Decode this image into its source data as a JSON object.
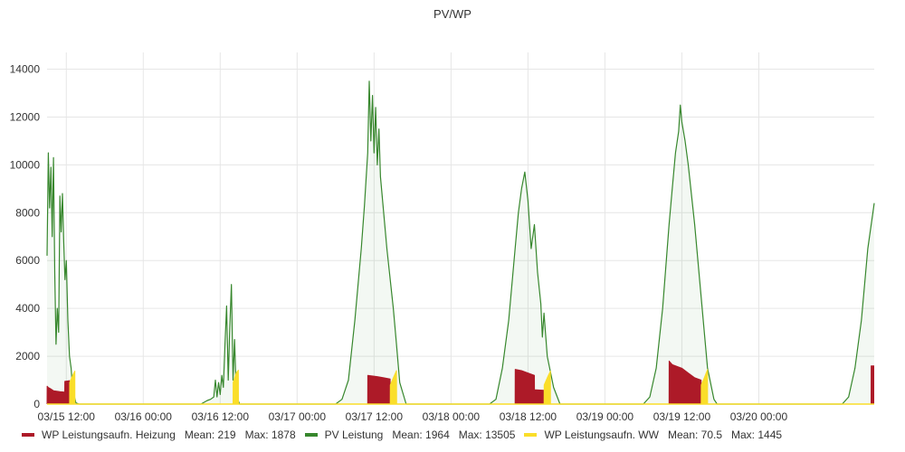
{
  "chart_data": {
    "type": "area",
    "title": "PV/WP",
    "xlabel": "",
    "ylabel": "",
    "ylim": [
      0,
      14700
    ],
    "xlim": [
      "2024-03-15T09:00",
      "2024-03-20T18:00"
    ],
    "grid": true,
    "legend_position": "bottom-left",
    "yticks": [
      0,
      2000,
      4000,
      6000,
      8000,
      10000,
      12000,
      14000
    ],
    "ytick_labels": [
      "0",
      "2000",
      "4000",
      "6000",
      "8000",
      "10000",
      "12000",
      "14000"
    ],
    "xticks": [
      "2024-03-15T12:00",
      "2024-03-16T00:00",
      "2024-03-16T12:00",
      "2024-03-17T00:00",
      "2024-03-17T12:00",
      "2024-03-18T00:00",
      "2024-03-18T12:00",
      "2024-03-19T00:00",
      "2024-03-19T12:00",
      "2024-03-20T00:00"
    ],
    "xtick_labels": [
      "03/15 12:00",
      "03/16 00:00",
      "03/16 12:00",
      "03/17 00:00",
      "03/17 12:00",
      "03/18 00:00",
      "03/18 12:00",
      "03/19 00:00",
      "03/19 12:00",
      "03/20 00:00"
    ],
    "series": [
      {
        "name": "PV Leistung",
        "color": "#37872d",
        "stats": {
          "mean_label": "Mean: 1964",
          "max_label": "Max: 13505"
        },
        "points": [
          [
            "2024-03-15T09:00",
            6200
          ],
          [
            "2024-03-15T09:12",
            10500
          ],
          [
            "2024-03-15T09:24",
            8200
          ],
          [
            "2024-03-15T09:36",
            9900
          ],
          [
            "2024-03-15T09:48",
            7000
          ],
          [
            "2024-03-15T10:00",
            10300
          ],
          [
            "2024-03-15T10:12",
            5500
          ],
          [
            "2024-03-15T10:24",
            2500
          ],
          [
            "2024-03-15T10:36",
            4000
          ],
          [
            "2024-03-15T10:48",
            3000
          ],
          [
            "2024-03-15T11:00",
            8700
          ],
          [
            "2024-03-15T11:12",
            7200
          ],
          [
            "2024-03-15T11:24",
            8800
          ],
          [
            "2024-03-15T11:36",
            6800
          ],
          [
            "2024-03-15T11:48",
            5200
          ],
          [
            "2024-03-15T12:00",
            6000
          ],
          [
            "2024-03-15T12:15",
            3500
          ],
          [
            "2024-03-15T12:30",
            2000
          ],
          [
            "2024-03-15T12:45",
            1500
          ],
          [
            "2024-03-15T13:00",
            600
          ],
          [
            "2024-03-15T13:30",
            50
          ],
          [
            "2024-03-15T14:00",
            0
          ],
          [
            "2024-03-16T09:00",
            0
          ],
          [
            "2024-03-16T10:00",
            150
          ],
          [
            "2024-03-16T10:30",
            200
          ],
          [
            "2024-03-16T11:00",
            300
          ],
          [
            "2024-03-16T11:15",
            1000
          ],
          [
            "2024-03-16T11:30",
            300
          ],
          [
            "2024-03-16T11:45",
            900
          ],
          [
            "2024-03-16T12:00",
            400
          ],
          [
            "2024-03-16T12:15",
            1200
          ],
          [
            "2024-03-16T12:30",
            700
          ],
          [
            "2024-03-16T12:45",
            2500
          ],
          [
            "2024-03-16T13:00",
            4100
          ],
          [
            "2024-03-16T13:15",
            1000
          ],
          [
            "2024-03-16T13:30",
            3200
          ],
          [
            "2024-03-16T13:45",
            5000
          ],
          [
            "2024-03-16T14:00",
            1000
          ],
          [
            "2024-03-16T14:15",
            2700
          ],
          [
            "2024-03-16T14:30",
            500
          ],
          [
            "2024-03-16T14:45",
            200
          ],
          [
            "2024-03-16T15:00",
            0
          ],
          [
            "2024-03-17T06:00",
            0
          ],
          [
            "2024-03-17T07:00",
            200
          ],
          [
            "2024-03-17T08:00",
            1000
          ],
          [
            "2024-03-17T09:00",
            3500
          ],
          [
            "2024-03-17T10:00",
            6500
          ],
          [
            "2024-03-17T10:30",
            8300
          ],
          [
            "2024-03-17T11:00",
            10500
          ],
          [
            "2024-03-17T11:15",
            13500
          ],
          [
            "2024-03-17T11:30",
            11000
          ],
          [
            "2024-03-17T11:45",
            12900
          ],
          [
            "2024-03-17T12:00",
            10500
          ],
          [
            "2024-03-17T12:15",
            12400
          ],
          [
            "2024-03-17T12:30",
            10000
          ],
          [
            "2024-03-17T12:45",
            11500
          ],
          [
            "2024-03-17T13:00",
            9500
          ],
          [
            "2024-03-17T14:00",
            6500
          ],
          [
            "2024-03-17T15:00",
            4000
          ],
          [
            "2024-03-17T15:30",
            2500
          ],
          [
            "2024-03-17T16:00",
            900
          ],
          [
            "2024-03-17T17:00",
            0
          ],
          [
            "2024-03-18T06:00",
            0
          ],
          [
            "2024-03-18T07:00",
            200
          ],
          [
            "2024-03-18T08:00",
            1500
          ],
          [
            "2024-03-18T09:00",
            3500
          ],
          [
            "2024-03-18T10:00",
            6500
          ],
          [
            "2024-03-18T10:30",
            8000
          ],
          [
            "2024-03-18T11:00",
            9000
          ],
          [
            "2024-03-18T11:30",
            9700
          ],
          [
            "2024-03-18T12:00",
            8500
          ],
          [
            "2024-03-18T12:30",
            6500
          ],
          [
            "2024-03-18T13:00",
            7500
          ],
          [
            "2024-03-18T13:30",
            5500
          ],
          [
            "2024-03-18T14:00",
            4200
          ],
          [
            "2024-03-18T14:15",
            2800
          ],
          [
            "2024-03-18T14:30",
            3800
          ],
          [
            "2024-03-18T15:00",
            2000
          ],
          [
            "2024-03-18T16:00",
            700
          ],
          [
            "2024-03-18T17:00",
            0
          ],
          [
            "2024-03-19T06:00",
            0
          ],
          [
            "2024-03-19T07:00",
            300
          ],
          [
            "2024-03-19T08:00",
            1500
          ],
          [
            "2024-03-19T09:00",
            4000
          ],
          [
            "2024-03-19T10:00",
            7500
          ],
          [
            "2024-03-19T10:30",
            9000
          ],
          [
            "2024-03-19T11:00",
            10500
          ],
          [
            "2024-03-19T11:30",
            11400
          ],
          [
            "2024-03-19T11:45",
            12500
          ],
          [
            "2024-03-19T12:00",
            11800
          ],
          [
            "2024-03-19T12:30",
            11000
          ],
          [
            "2024-03-19T13:00",
            10000
          ],
          [
            "2024-03-19T14:00",
            7500
          ],
          [
            "2024-03-19T15:00",
            4500
          ],
          [
            "2024-03-19T16:00",
            1500
          ],
          [
            "2024-03-19T17:00",
            200
          ],
          [
            "2024-03-19T17:30",
            0
          ],
          [
            "2024-03-20T13:00",
            0
          ],
          [
            "2024-03-20T14:00",
            300
          ],
          [
            "2024-03-20T15:00",
            1500
          ],
          [
            "2024-03-20T16:00",
            3500
          ],
          [
            "2024-03-20T17:00",
            6500
          ],
          [
            "2024-03-20T18:00",
            8400
          ]
        ]
      },
      {
        "name": "WP Leistungsaufn. Heizung",
        "color": "#ad1a28",
        "stats": {
          "mean_label": "Mean: 219",
          "max_label": "Max: 1878"
        },
        "points": [
          [
            "2024-03-15T09:00",
            0
          ],
          [
            "2024-03-15T09:01",
            750
          ],
          [
            "2024-03-15T09:10",
            700
          ],
          [
            "2024-03-15T09:30",
            650
          ],
          [
            "2024-03-15T10:00",
            560
          ],
          [
            "2024-03-15T11:00",
            520
          ],
          [
            "2024-03-15T11:45",
            500
          ],
          [
            "2024-03-15T11:46",
            950
          ],
          [
            "2024-03-15T12:30",
            980
          ],
          [
            "2024-03-15T12:31",
            0
          ],
          [
            "2024-03-17T11:00",
            0
          ],
          [
            "2024-03-17T11:01",
            1200
          ],
          [
            "2024-03-17T12:30",
            1150
          ],
          [
            "2024-03-17T13:30",
            1100
          ],
          [
            "2024-03-17T14:30",
            1050
          ],
          [
            "2024-03-17T14:31",
            0
          ],
          [
            "2024-03-18T10:00",
            0
          ],
          [
            "2024-03-18T10:01",
            1450
          ],
          [
            "2024-03-18T11:00",
            1400
          ],
          [
            "2024-03-18T12:00",
            1300
          ],
          [
            "2024-03-18T13:00",
            1200
          ],
          [
            "2024-03-18T13:01",
            600
          ],
          [
            "2024-03-18T14:30",
            580
          ],
          [
            "2024-03-18T14:31",
            0
          ],
          [
            "2024-03-19T10:00",
            0
          ],
          [
            "2024-03-19T10:01",
            1800
          ],
          [
            "2024-03-19T10:30",
            1650
          ],
          [
            "2024-03-19T12:00",
            1500
          ],
          [
            "2024-03-19T13:00",
            1300
          ],
          [
            "2024-03-19T14:00",
            1100
          ],
          [
            "2024-03-19T15:00",
            1000
          ],
          [
            "2024-03-19T15:01",
            0
          ],
          [
            "2024-03-20T17:30",
            0
          ],
          [
            "2024-03-20T17:31",
            1600
          ],
          [
            "2024-03-20T18:00",
            1600
          ]
        ]
      },
      {
        "name": "WP Leistungsaufn. WW",
        "color": "#fade2a",
        "stats": {
          "mean_label": "Mean: 70.5",
          "max_label": "Max: 1445"
        },
        "points": [
          [
            "2024-03-15T12:31",
            0
          ],
          [
            "2024-03-15T12:32",
            900
          ],
          [
            "2024-03-15T13:00",
            1200
          ],
          [
            "2024-03-15T13:20",
            1380
          ],
          [
            "2024-03-15T13:21",
            0
          ],
          [
            "2024-03-16T14:00",
            0
          ],
          [
            "2024-03-16T14:01",
            900
          ],
          [
            "2024-03-16T14:30",
            1300
          ],
          [
            "2024-03-16T14:50",
            1420
          ],
          [
            "2024-03-16T14:51",
            0
          ],
          [
            "2024-03-17T14:31",
            0
          ],
          [
            "2024-03-17T14:32",
            800
          ],
          [
            "2024-03-17T15:00",
            1100
          ],
          [
            "2024-03-17T15:30",
            1400
          ],
          [
            "2024-03-17T15:31",
            0
          ],
          [
            "2024-03-18T14:31",
            0
          ],
          [
            "2024-03-18T14:32",
            800
          ],
          [
            "2024-03-18T15:00",
            1100
          ],
          [
            "2024-03-18T15:30",
            1380
          ],
          [
            "2024-03-18T15:31",
            0
          ],
          [
            "2024-03-19T15:01",
            0
          ],
          [
            "2024-03-19T15:02",
            800
          ],
          [
            "2024-03-19T15:30",
            1100
          ],
          [
            "2024-03-19T16:00",
            1445
          ],
          [
            "2024-03-19T16:01",
            0
          ]
        ]
      }
    ]
  },
  "legend": [
    {
      "name": "WP Leistungsaufn. Heizung",
      "mean": "Mean: 219",
      "max": "Max: 1878",
      "color": "#ad1a28"
    },
    {
      "name": "PV Leistung",
      "mean": "Mean: 1964",
      "max": "Max: 13505",
      "color": "#37872d"
    },
    {
      "name": "WP Leistungsaufn. WW",
      "mean": "Mean: 70.5",
      "max": "Max: 1445",
      "color": "#fade2a"
    }
  ]
}
